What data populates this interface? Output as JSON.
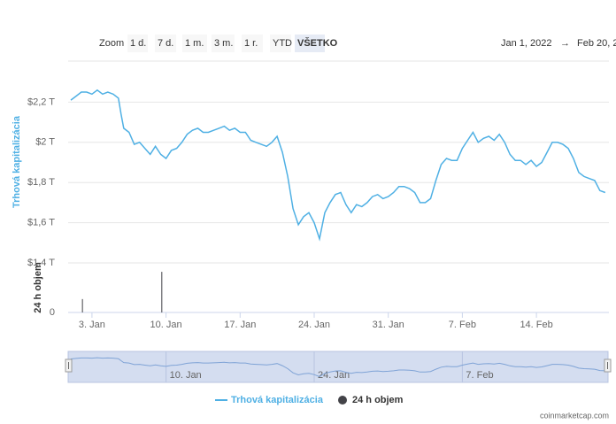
{
  "zoom": {
    "label": "Zoom",
    "buttons": [
      "1 d.",
      "7 d.",
      "1 m.",
      "3 m.",
      "1 r.",
      "YTD",
      "VŠETKO"
    ],
    "selected_index": 6
  },
  "date_range": {
    "from": "Jan 1, 2022",
    "arrow": "→",
    "to": "Feb 20, 2"
  },
  "credit": "coinmarketcap.com",
  "chart_data": {
    "type": "line",
    "ylabel": "Trhová kapitalizácia",
    "y2label": "24 h objem",
    "x": [
      1.0,
      1.5,
      2.0,
      2.5,
      3.0,
      3.5,
      4.0,
      4.5,
      5.0,
      5.5,
      5.75,
      6.0,
      6.5,
      7.0,
      7.5,
      8.0,
      8.5,
      9.0,
      9.5,
      10.0,
      10.5,
      11.0,
      11.5,
      12.0,
      12.5,
      13.0,
      13.5,
      14.0,
      14.5,
      15.0,
      15.5,
      16.0,
      16.5,
      17.0,
      17.5,
      18.0,
      18.5,
      19.0,
      19.5,
      20.0,
      20.5,
      21.0,
      21.5,
      22.0,
      22.5,
      23.0,
      23.5,
      24.0,
      24.5,
      25.0,
      25.5,
      26.0,
      26.5,
      27.0,
      27.5,
      28.0,
      28.5,
      29.0,
      29.5,
      30.0,
      30.5,
      31.0,
      31.5,
      32.0,
      32.5,
      33.0,
      33.5,
      34.0,
      34.5,
      35.0,
      35.5,
      36.0,
      36.5,
      37.0,
      37.5,
      38.0,
      38.5,
      39.0,
      39.5,
      40.0,
      40.5,
      41.0,
      41.5,
      42.0,
      42.5,
      43.0,
      43.5,
      44.0,
      44.5,
      45.0,
      45.5,
      46.0,
      46.5,
      47.0,
      47.5,
      48.0,
      48.5,
      49.0,
      49.5,
      50.0,
      50.5,
      51.0,
      51.5
    ],
    "series": [
      {
        "name": "Trhová kapitalizácia",
        "color": "#4fb0e4",
        "values": [
          2.21,
          2.23,
          2.25,
          2.25,
          2.24,
          2.26,
          2.24,
          2.25,
          2.24,
          2.22,
          2.14,
          2.07,
          2.05,
          1.99,
          2.0,
          1.97,
          1.94,
          1.98,
          1.94,
          1.92,
          1.96,
          1.97,
          2.0,
          2.04,
          2.06,
          2.07,
          2.05,
          2.05,
          2.06,
          2.07,
          2.08,
          2.06,
          2.07,
          2.05,
          2.05,
          2.01,
          2.0,
          1.99,
          1.98,
          2.0,
          2.03,
          1.95,
          1.83,
          1.67,
          1.59,
          1.63,
          1.65,
          1.6,
          1.52,
          1.65,
          1.7,
          1.74,
          1.75,
          1.69,
          1.65,
          1.69,
          1.68,
          1.7,
          1.73,
          1.74,
          1.72,
          1.73,
          1.75,
          1.78,
          1.78,
          1.77,
          1.75,
          1.7,
          1.7,
          1.72,
          1.81,
          1.89,
          1.92,
          1.91,
          1.91,
          1.97,
          2.01,
          2.05,
          2.0,
          2.02,
          2.03,
          2.01,
          2.04,
          2.0,
          1.94,
          1.91,
          1.91,
          1.89,
          1.91,
          1.88,
          1.9,
          1.95,
          2.0,
          2.0,
          1.99,
          1.97,
          1.92,
          1.85,
          1.83,
          1.82,
          1.81,
          1.76,
          1.75
        ]
      },
      {
        "name": "24 h objem",
        "color": "#434348",
        "axis": "y2",
        "x": [
          2.1,
          9.6
        ],
        "values": [
          27,
          82
        ]
      }
    ],
    "xlim": [
      0.75,
      51.85
    ],
    "xticks": [
      {
        "value": 3,
        "label": "3. Jan"
      },
      {
        "value": 10,
        "label": "10. Jan"
      },
      {
        "value": 17,
        "label": "17. Jan"
      },
      {
        "value": 24,
        "label": "24. Jan"
      },
      {
        "value": 31,
        "label": "31. Jan"
      },
      {
        "value": 38,
        "label": "7. Feb"
      },
      {
        "value": 45,
        "label": "14. Feb"
      }
    ],
    "navigator_xticks": [
      {
        "value": 10,
        "label": "10. Jan"
      },
      {
        "value": 24,
        "label": "24. Jan"
      },
      {
        "value": 38,
        "label": "7. Feb"
      }
    ],
    "ylim": [
      1.4,
      2.4
    ],
    "yticks": [
      {
        "value": 1.4,
        "label": "$1,4 T"
      },
      {
        "value": 1.6,
        "label": "$1,6 T"
      },
      {
        "value": 1.8,
        "label": "$1,8 T"
      },
      {
        "value": 2.0,
        "label": "$2 T"
      },
      {
        "value": 2.2,
        "label": "$2,2 T"
      }
    ],
    "y2lim": [
      0,
      100
    ],
    "y2ticks": [
      0
    ],
    "grid": true
  }
}
